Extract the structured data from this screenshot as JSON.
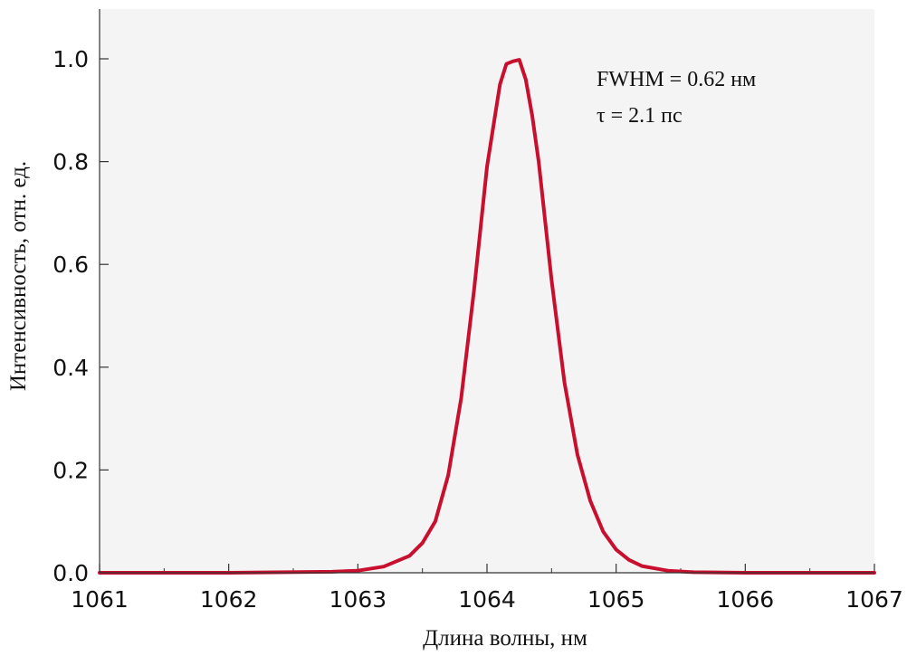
{
  "chart_data": {
    "type": "line",
    "xlabel": "Длина волны, нм",
    "ylabel": "Интенсивность, отн. ед.",
    "xlim": [
      1061,
      1067
    ],
    "ylim": [
      0.0,
      1.1
    ],
    "x_ticks": [
      1061,
      1062,
      1063,
      1064,
      1065,
      1066,
      1067
    ],
    "x_tick_labels": [
      "1061",
      "1062",
      "1063",
      "1064",
      "1065",
      "1066",
      "1067"
    ],
    "y_ticks": [
      0.0,
      0.2,
      0.4,
      0.6,
      0.8,
      1.0
    ],
    "y_tick_labels": [
      "0.0",
      "0.2",
      "0.4",
      "0.6",
      "0.8",
      "1.0"
    ],
    "annotations": [
      "FWHM = 0.62 нм",
      "τ = 2.1 пс"
    ],
    "grid": false,
    "plot_background": "#f4f4f4",
    "series": [
      {
        "color": "#c8102e",
        "x": [
          1061.0,
          1062.0,
          1062.8,
          1063.0,
          1063.2,
          1063.4,
          1063.5,
          1063.6,
          1063.7,
          1063.8,
          1063.9,
          1064.0,
          1064.1,
          1064.15,
          1064.2,
          1064.25,
          1064.3,
          1064.35,
          1064.4,
          1064.5,
          1064.6,
          1064.7,
          1064.8,
          1064.9,
          1065.0,
          1065.1,
          1065.2,
          1065.4,
          1065.6,
          1066.0,
          1067.0
        ],
        "y": [
          0.0,
          0.0,
          0.002,
          0.004,
          0.012,
          0.033,
          0.058,
          0.1,
          0.19,
          0.34,
          0.55,
          0.79,
          0.95,
          0.99,
          0.995,
          0.998,
          0.96,
          0.89,
          0.8,
          0.57,
          0.37,
          0.23,
          0.14,
          0.08,
          0.045,
          0.025,
          0.013,
          0.004,
          0.001,
          0.0,
          0.0
        ]
      }
    ]
  }
}
